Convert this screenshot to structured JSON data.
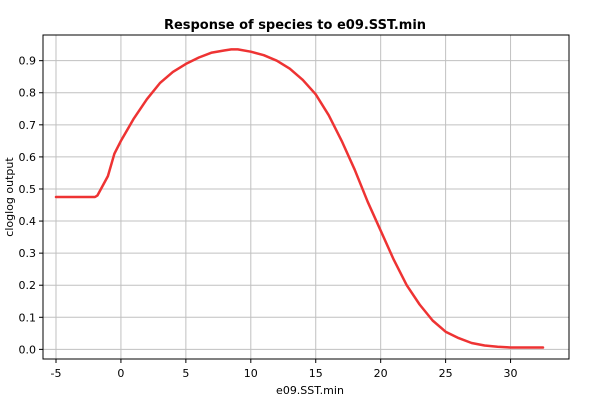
{
  "chart_data": {
    "type": "line",
    "title": "Response of species to e09.SST.min",
    "xlabel": "e09.SST.min",
    "ylabel": "cloglog output",
    "xlim": [
      -6.0,
      34.5
    ],
    "ylim": [
      -0.03,
      0.98
    ],
    "xticks": [
      -5,
      0,
      5,
      10,
      15,
      20,
      25,
      30
    ],
    "yticks": [
      0.0,
      0.1,
      0.2,
      0.3,
      0.4,
      0.5,
      0.6,
      0.7,
      0.8,
      0.9
    ],
    "ytick_labels": [
      "0.0",
      "0.1",
      "0.2",
      "0.3",
      "0.4",
      "0.5",
      "0.6",
      "0.7",
      "0.8",
      "0.9"
    ],
    "grid": true,
    "colors": {
      "line": "#ee3333",
      "grid": "#c0c0c0",
      "axis": "#000000"
    },
    "series": [
      {
        "x": [
          -5.0,
          -2.0,
          -1.8,
          -1.0,
          -0.5,
          0.0,
          1.0,
          2.0,
          3.0,
          4.0,
          5.0,
          6.0,
          7.0,
          8.0,
          8.5,
          9.0,
          10.0,
          11.0,
          12.0,
          13.0,
          14.0,
          15.0,
          16.0,
          17.0,
          18.0,
          19.0,
          20.0,
          21.0,
          22.0,
          23.0,
          24.0,
          25.0,
          26.0,
          27.0,
          28.0,
          29.0,
          30.0,
          31.0,
          32.5
        ],
        "y": [
          0.475,
          0.475,
          0.48,
          0.54,
          0.61,
          0.65,
          0.72,
          0.78,
          0.83,
          0.865,
          0.89,
          0.91,
          0.925,
          0.932,
          0.935,
          0.935,
          0.928,
          0.917,
          0.9,
          0.875,
          0.84,
          0.795,
          0.73,
          0.65,
          0.56,
          0.46,
          0.37,
          0.28,
          0.2,
          0.14,
          0.09,
          0.055,
          0.035,
          0.02,
          0.012,
          0.008,
          0.006,
          0.006,
          0.006
        ]
      }
    ]
  }
}
